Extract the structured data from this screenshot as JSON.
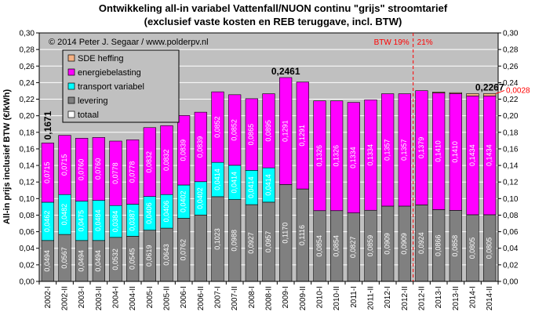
{
  "chart_data": {
    "type": "bar",
    "stacked": true,
    "title": "Ontwikkeling  all-in variabel Vattenfall/NUON  continu \"grijs\"  stroomtarief",
    "subtitle": "(exclusief vaste kosten en REB teruggave, incl. BTW)",
    "ylabel": "All-in prijs inclusief BTW (€/kWh)",
    "ylim": [
      0,
      0.3
    ],
    "yticks": [
      "0,00",
      "0,02",
      "0,04",
      "0,06",
      "0,08",
      "0,10",
      "0,12",
      "0,14",
      "0,16",
      "0,18",
      "0,20",
      "0,22",
      "0,24",
      "0,26",
      "0,28",
      "0,30"
    ],
    "grid": true,
    "copyright": "© 2014 Peter J. Segaar / www.polderpv.nl",
    "categories": [
      "2002-I",
      "2002-II",
      "2003-I",
      "2003-II",
      "2004-I",
      "2004-II",
      "2005-I",
      "2005-II",
      "2006-I",
      "2006-II",
      "2007-I",
      "2007-II",
      "2008-I",
      "2008-II",
      "2009-I",
      "2009-II",
      "2010-I",
      "2010-II",
      "2011-I",
      "2011-II",
      "2012-I",
      "2012-II",
      "2012-II",
      "2013-I",
      "2013-II",
      "2014-I",
      "2014-II"
    ],
    "series": [
      {
        "name": "levering",
        "color": "#808080",
        "values": [
          0.0494,
          0.0567,
          0.0494,
          0.0494,
          0.0532,
          0.0545,
          0.0619,
          0.0643,
          0.0762,
          0.0802,
          0.1023,
          0.0988,
          0.0927,
          0.0957,
          0.117,
          0.1116,
          0.0854,
          0.0854,
          0.0827,
          0.0859,
          0.0909,
          0.0909,
          0.0924,
          0.0866,
          0.0858,
          0.0805,
          0.0805
        ],
        "labels": [
          "0,0494",
          "0,0567",
          "0,0494",
          "0,0494",
          "0,0532",
          "0,0545",
          "0,0619",
          "0,0643",
          "0,0762",
          "",
          "0,1023",
          "0,0988",
          "0,0927",
          "0,0957",
          "0,1170",
          "0,1116",
          "0,0854",
          "0,0854",
          "0,0827",
          "0,0859",
          "0,0909",
          "0,0909",
          "0,0924",
          "0,0866",
          "0,0858",
          "0,0805",
          "0,0805"
        ]
      },
      {
        "name": "transport variabel",
        "color": "#00ffff",
        "values": [
          0.0462,
          0.0482,
          0.0475,
          0.0484,
          0.0384,
          0.0387,
          0.0406,
          0.0406,
          0.0402,
          0.0402,
          0.0414,
          0.0414,
          0.0414,
          0.0414,
          0,
          0,
          0,
          0,
          0,
          0,
          0,
          0,
          0,
          0,
          0,
          0,
          0
        ],
        "labels": [
          "0,0462",
          "0,0482",
          "0,0475",
          "0,0484",
          "0,0384",
          "0,0387",
          "0,0406",
          "0,0406",
          "0,0402",
          "0,0402",
          "0,0414",
          "0,0414",
          "0,0414",
          "0,0414",
          "",
          "",
          "",
          "",
          "",
          "",
          "",
          "",
          "",
          "",
          "",
          "",
          ""
        ]
      },
      {
        "name": "energiebelasting",
        "color": "#ff00ff",
        "values": [
          0.0715,
          0.0715,
          0.076,
          0.076,
          0.0778,
          0.0778,
          0.0832,
          0.0832,
          0.0839,
          0.0839,
          0.0852,
          0.0852,
          0.0865,
          0.0895,
          0.1291,
          0.1291,
          0.1326,
          0.1326,
          0.1334,
          0.1334,
          0.1357,
          0.1357,
          0.1379,
          0.141,
          0.141,
          0.1434,
          0.1434
        ],
        "labels": [
          "0,0715",
          "0,0715",
          "0,0760",
          "0,0760",
          "0,0778",
          "0,0778",
          "0,0832",
          "0,0832",
          "0,0839",
          "0,0839",
          "0,0852",
          "0,0852",
          "0,0865",
          "0,0895",
          "0,1291",
          "0,1291",
          "0,1326",
          "0,1326",
          "0,1334",
          "0,1334",
          "0,1357",
          "0,1357",
          "0,1379",
          "0,1410",
          "0,1410",
          "0,1434",
          "0,1434"
        ]
      },
      {
        "name": "SDE heffing",
        "color": "#f4b183",
        "values": [
          0,
          0,
          0,
          0,
          0,
          0,
          0,
          0,
          0,
          0,
          0,
          0,
          0,
          0,
          0,
          0,
          0,
          0,
          0,
          0,
          0,
          0,
          0,
          0.001,
          0.0011,
          0.0028,
          0.0028
        ],
        "labels": []
      }
    ],
    "legend": {
      "position": "top-left",
      "entries": [
        {
          "name": "SDE heffing",
          "color": "#f4b183"
        },
        {
          "name": "energiebelasting",
          "color": "#ff00ff"
        },
        {
          "name": "transport variabel",
          "color": "#00ffff"
        },
        {
          "name": "levering",
          "color": "#808080"
        },
        {
          "name": "totaal",
          "color": "#ffffff"
        }
      ]
    },
    "annotations": [
      {
        "text": "0,1671",
        "category_index": 0
      },
      {
        "text": "0,2461",
        "category_index": 14
      },
      {
        "text": "0,2267",
        "category_index": 26
      },
      {
        "text": "0,0028",
        "category_index": 26,
        "color": "#ff0000"
      }
    ],
    "btw_marker": {
      "left": "BTW 19%",
      "right": "21%",
      "after_category_index": 21
    }
  }
}
